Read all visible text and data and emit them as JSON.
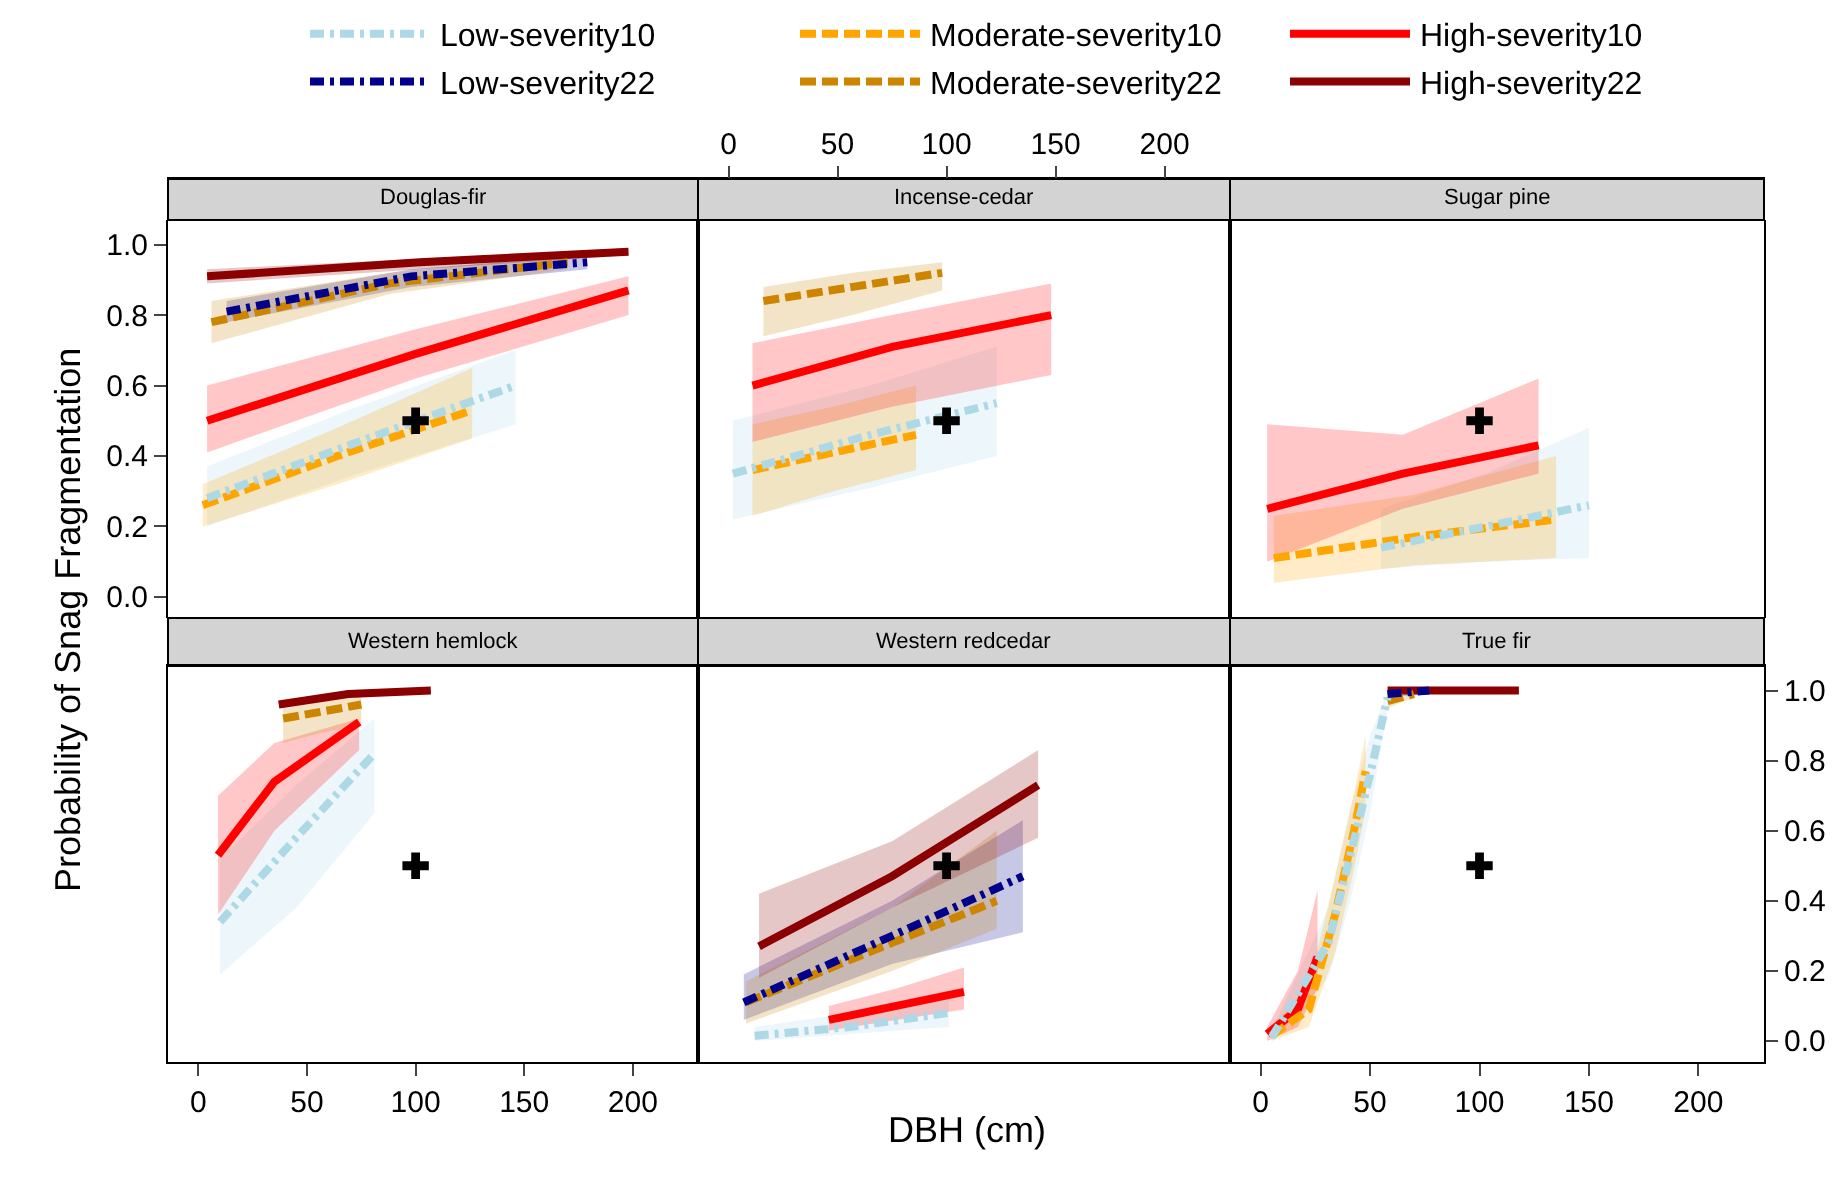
{
  "chart_data": [
    {
      "type": "line",
      "title": "Douglas-fir",
      "ylabel": "Probability of Snag Fragmentation",
      "legend": "top",
      "tick_labels": "y",
      "xlim": [
        -14,
        230
      ],
      "xticks": [
        0,
        50,
        100,
        150,
        200
      ],
      "ylim": [
        -0.06,
        1.07
      ],
      "yticks": [
        {
          "value": 0,
          "label": "0.0"
        },
        {
          "value": 0.2,
          "label": "0.2"
        },
        {
          "value": 0.4,
          "label": "0.4"
        },
        {
          "value": 0.6,
          "label": "0.6"
        },
        {
          "value": 0.8,
          "label": "0.8"
        },
        {
          "value": 1,
          "label": "1.0"
        }
      ],
      "series": [
        {
          "name": "Low-severity10",
          "color": "#add8e6",
          "line_style": "dashdot",
          "x": [
            4,
            69,
            146
          ],
          "values": [
            0.28,
            0.43,
            0.6
          ],
          "lower": [
            0.2,
            0.34,
            0.49
          ],
          "upper": [
            0.37,
            0.53,
            0.7
          ]
        },
        {
          "name": "Moderate-severity10",
          "color": "#ffa500",
          "line_style": "dashed",
          "x": [
            2,
            64,
            126
          ],
          "values": [
            0.26,
            0.4,
            0.53
          ],
          "lower": [
            0.2,
            0.32,
            0.45
          ],
          "upper": [
            0.32,
            0.48,
            0.65
          ]
        },
        {
          "name": "High-severity10",
          "color": "#ff0000",
          "line_style": "solid",
          "x": [
            4,
            100,
            198
          ],
          "values": [
            0.5,
            0.69,
            0.87
          ],
          "lower": [
            0.41,
            0.62,
            0.8
          ],
          "upper": [
            0.6,
            0.76,
            0.91
          ]
        },
        {
          "name": "Low-severity22",
          "color": "#00008b",
          "line_style": "dashdot",
          "x": [
            13,
            98,
            179
          ],
          "values": [
            0.81,
            0.91,
            0.95
          ],
          "lower": [
            0.78,
            0.88,
            0.93
          ],
          "upper": [
            0.84,
            0.93,
            0.97
          ]
        },
        {
          "name": "Moderate-severity22",
          "color": "#cd8500",
          "line_style": "dashed",
          "x": [
            6,
            88,
            170
          ],
          "values": [
            0.78,
            0.89,
            0.95
          ],
          "lower": [
            0.72,
            0.86,
            0.93
          ],
          "upper": [
            0.84,
            0.92,
            0.97
          ]
        },
        {
          "name": "High-severity22",
          "color": "#8b0000",
          "line_style": "solid",
          "x": [
            4,
            102,
            198
          ],
          "values": [
            0.91,
            0.95,
            0.98
          ],
          "lower": [
            0.89,
            0.93,
            0.97
          ],
          "upper": [
            0.93,
            0.96,
            0.99
          ]
        },
        {
          "type": "scatter",
          "color": "#000000",
          "marker": "cross",
          "x": [
            100
          ],
          "values": [
            0.5
          ]
        }
      ]
    },
    {
      "type": "line",
      "title": "Incense-cedar",
      "tick_labels": "x",
      "xlim": [
        -14,
        230
      ],
      "xticks": [
        0,
        50,
        100,
        150,
        200
      ],
      "ylim": [
        -0.06,
        1.07
      ],
      "series": [
        {
          "name": "Low-severity10",
          "color": "#add8e6",
          "line_style": "dashdot",
          "x": [
            2,
            65,
            123
          ],
          "values": [
            0.35,
            0.46,
            0.55
          ],
          "lower": [
            0.22,
            0.31,
            0.4
          ],
          "upper": [
            0.5,
            0.6,
            0.71
          ]
        },
        {
          "name": "Moderate-severity10",
          "color": "#ffa500",
          "line_style": "dashed",
          "x": [
            11,
            48,
            86
          ],
          "values": [
            0.36,
            0.41,
            0.46
          ],
          "lower": [
            0.23,
            0.3,
            0.36
          ],
          "upper": [
            0.49,
            0.54,
            0.6
          ]
        },
        {
          "name": "High-severity10",
          "color": "#ff0000",
          "line_style": "solid",
          "x": [
            11,
            75,
            148
          ],
          "values": [
            0.6,
            0.71,
            0.8
          ],
          "lower": [
            0.44,
            0.54,
            0.63
          ],
          "upper": [
            0.72,
            0.8,
            0.89
          ]
        },
        {
          "name": "Moderate-severity22",
          "color": "#cd8500",
          "line_style": "dashed",
          "x": [
            16,
            57,
            98
          ],
          "values": [
            0.84,
            0.88,
            0.92
          ],
          "lower": [
            0.74,
            0.8,
            0.87
          ],
          "upper": [
            0.88,
            0.92,
            0.95
          ]
        },
        {
          "type": "scatter",
          "color": "#000000",
          "marker": "cross",
          "x": [
            100
          ],
          "values": [
            0.5
          ]
        }
      ]
    },
    {
      "type": "line",
      "title": "Sugar pine",
      "tick_labels": false,
      "xlim": [
        -14,
        230
      ],
      "ylim": [
        -0.06,
        1.07
      ],
      "series": [
        {
          "name": "Low-severity10",
          "color": "#add8e6",
          "line_style": "dashdot",
          "x": [
            55,
            103,
            150
          ],
          "values": [
            0.14,
            0.2,
            0.26
          ],
          "lower": [
            0.08,
            0.1,
            0.11
          ],
          "upper": [
            0.25,
            0.35,
            0.48
          ]
        },
        {
          "name": "Moderate-severity10",
          "color": "#ffa500",
          "line_style": "dashed",
          "x": [
            6,
            70,
            135
          ],
          "values": [
            0.11,
            0.17,
            0.22
          ],
          "lower": [
            0.04,
            0.09,
            0.11
          ],
          "upper": [
            0.23,
            0.29,
            0.4
          ]
        },
        {
          "name": "High-severity10",
          "color": "#ff0000",
          "line_style": "solid",
          "x": [
            3,
            65,
            127
          ],
          "values": [
            0.25,
            0.35,
            0.43
          ],
          "lower": [
            0.1,
            0.25,
            0.35
          ],
          "upper": [
            0.49,
            0.46,
            0.62
          ]
        },
        {
          "type": "scatter",
          "color": "#000000",
          "marker": "cross",
          "x": [
            100
          ],
          "values": [
            0.5
          ]
        }
      ]
    },
    {
      "type": "line",
      "title": "Western hemlock",
      "tick_labels": "x",
      "xlim": [
        -14,
        230
      ],
      "xticks": [
        0,
        50,
        100,
        150,
        200
      ],
      "ylim": [
        -0.06,
        1.07
      ],
      "series": [
        {
          "name": "Low-severity10",
          "color": "#add8e6",
          "line_style": "dashdot",
          "x": [
            10,
            45,
            81
          ],
          "values": [
            0.34,
            0.58,
            0.82
          ],
          "lower": [
            0.19,
            0.38,
            0.65
          ],
          "upper": [
            0.52,
            0.73,
            0.92
          ]
        },
        {
          "name": "High-severity10",
          "color": "#ff0000",
          "line_style": "solid",
          "x": [
            9,
            35,
            74
          ],
          "values": [
            0.53,
            0.74,
            0.91
          ],
          "lower": [
            0.36,
            0.6,
            0.83
          ],
          "upper": [
            0.7,
            0.85,
            0.92
          ]
        },
        {
          "name": "Moderate-severity22",
          "color": "#cd8500",
          "line_style": "dashed",
          "x": [
            39,
            57,
            75
          ],
          "values": [
            0.92,
            0.94,
            0.96
          ],
          "lower": [
            0.85,
            0.88,
            0.9
          ],
          "upper": [
            0.96,
            0.98,
            0.99
          ]
        },
        {
          "name": "High-severity22",
          "color": "#8b0000",
          "line_style": "solid",
          "x": [
            37,
            69,
            107
          ],
          "values": [
            0.96,
            0.99,
            1.0
          ],
          "lower": [
            0.95,
            0.98,
            0.99
          ],
          "upper": [
            0.97,
            1.0,
            1.0
          ]
        },
        {
          "type": "scatter",
          "color": "#000000",
          "marker": "cross",
          "x": [
            100
          ],
          "values": [
            0.5
          ]
        }
      ]
    },
    {
      "type": "line",
      "title": "Western redcedar",
      "xlabel": "DBH (cm)",
      "tick_labels": false,
      "xlim": [
        -14,
        230
      ],
      "ylim": [
        -0.06,
        1.07
      ],
      "series": [
        {
          "name": "Low-severity10",
          "color": "#add8e6",
          "line_style": "dashdot",
          "x": [
            12,
            56,
            101
          ],
          "values": [
            0.015,
            0.04,
            0.08
          ],
          "lower": [
            0.0,
            0.02,
            0.04
          ],
          "upper": [
            0.04,
            0.08,
            0.12
          ]
        },
        {
          "name": "High-severity10",
          "color": "#ff0000",
          "line_style": "solid",
          "x": [
            46,
            77,
            108
          ],
          "values": [
            0.06,
            0.1,
            0.14
          ],
          "lower": [
            0.03,
            0.06,
            0.09
          ],
          "upper": [
            0.1,
            0.15,
            0.21
          ]
        },
        {
          "name": "Low-severity22",
          "color": "#00008b",
          "line_style": "dashdot",
          "x": [
            7,
            75,
            135
          ],
          "values": [
            0.11,
            0.3,
            0.47
          ],
          "lower": [
            0.06,
            0.22,
            0.31
          ],
          "upper": [
            0.19,
            0.4,
            0.63
          ]
        },
        {
          "name": "Moderate-severity22",
          "color": "#cd8500",
          "line_style": "dashed",
          "x": [
            8,
            75,
            123
          ],
          "values": [
            0.11,
            0.28,
            0.4
          ],
          "lower": [
            0.05,
            0.2,
            0.32
          ],
          "upper": [
            0.17,
            0.38,
            0.6
          ]
        },
        {
          "name": "High-severity22",
          "color": "#8b0000",
          "line_style": "solid",
          "x": [
            14,
            75,
            142
          ],
          "values": [
            0.27,
            0.47,
            0.73
          ],
          "lower": [
            0.18,
            0.38,
            0.58
          ],
          "upper": [
            0.42,
            0.57,
            0.83
          ]
        },
        {
          "type": "scatter",
          "color": "#000000",
          "marker": "cross",
          "x": [
            100
          ],
          "values": [
            0.5
          ]
        }
      ]
    },
    {
      "type": "line",
      "title": "True fir",
      "xlim": [
        -14,
        230
      ],
      "xticks": [
        0,
        50,
        100,
        150,
        200
      ],
      "ylim": [
        -0.06,
        1.07
      ],
      "yticks": [
        {
          "value": 0,
          "label": "0.0"
        },
        {
          "value": 0.2,
          "label": "0.2"
        },
        {
          "value": 0.4,
          "label": "0.4"
        },
        {
          "value": 0.6,
          "label": "0.6"
        },
        {
          "value": 0.8,
          "label": "0.8"
        },
        {
          "value": 1,
          "label": "1.0"
        }
      ],
      "series": [
        {
          "name": "Low-severity10",
          "color": "#add8e6",
          "line_style": "dashdot",
          "x": [
            5,
            31,
            41,
            50,
            58
          ],
          "values": [
            0.01,
            0.28,
            0.53,
            0.76,
            0.98
          ],
          "lower": [
            0.0,
            0.18,
            0.4,
            0.65,
            0.95
          ],
          "upper": [
            0.03,
            0.38,
            0.66,
            0.87,
            1.0
          ]
        },
        {
          "name": "Moderate-severity10",
          "color": "#ffa500",
          "line_style": "dashed",
          "x": [
            5,
            22,
            34,
            43,
            48
          ],
          "values": [
            0.015,
            0.09,
            0.36,
            0.61,
            0.77
          ],
          "lower": [
            0.0,
            0.04,
            0.25,
            0.5,
            0.66
          ],
          "upper": [
            0.04,
            0.16,
            0.47,
            0.72,
            0.87
          ]
        },
        {
          "name": "High-severity10",
          "color": "#ff0000",
          "line_style": "solid",
          "x": [
            3,
            17,
            26
          ],
          "values": [
            0.02,
            0.09,
            0.24
          ],
          "lower": [
            0.0,
            0.04,
            0.15
          ],
          "upper": [
            0.04,
            0.2,
            0.43
          ]
        },
        {
          "name": "Low-severity22",
          "color": "#00008b",
          "line_style": "dashdot",
          "x": [
            58,
            77
          ],
          "values": [
            0.99,
            1.0
          ],
          "lower": [
            0.98,
            0.99
          ],
          "upper": [
            1.0,
            1.0
          ]
        },
        {
          "name": "Moderate-severity22",
          "color": "#cd8500",
          "line_style": "dashed",
          "x": [
            58,
            70
          ],
          "values": [
            0.97,
            0.99
          ],
          "lower": [
            0.95,
            0.98
          ],
          "upper": [
            0.99,
            1.0
          ]
        },
        {
          "name": "High-severity22",
          "color": "#8b0000",
          "line_style": "solid",
          "x": [
            58,
            88,
            118
          ],
          "values": [
            1.0,
            1.0,
            1.0
          ],
          "lower": [
            0.99,
            0.99,
            0.99
          ],
          "upper": [
            1.0,
            1.0,
            1.0
          ]
        },
        {
          "type": "scatter",
          "color": "#000000",
          "marker": "cross",
          "x": [
            100
          ],
          "values": [
            0.5
          ]
        }
      ]
    }
  ]
}
